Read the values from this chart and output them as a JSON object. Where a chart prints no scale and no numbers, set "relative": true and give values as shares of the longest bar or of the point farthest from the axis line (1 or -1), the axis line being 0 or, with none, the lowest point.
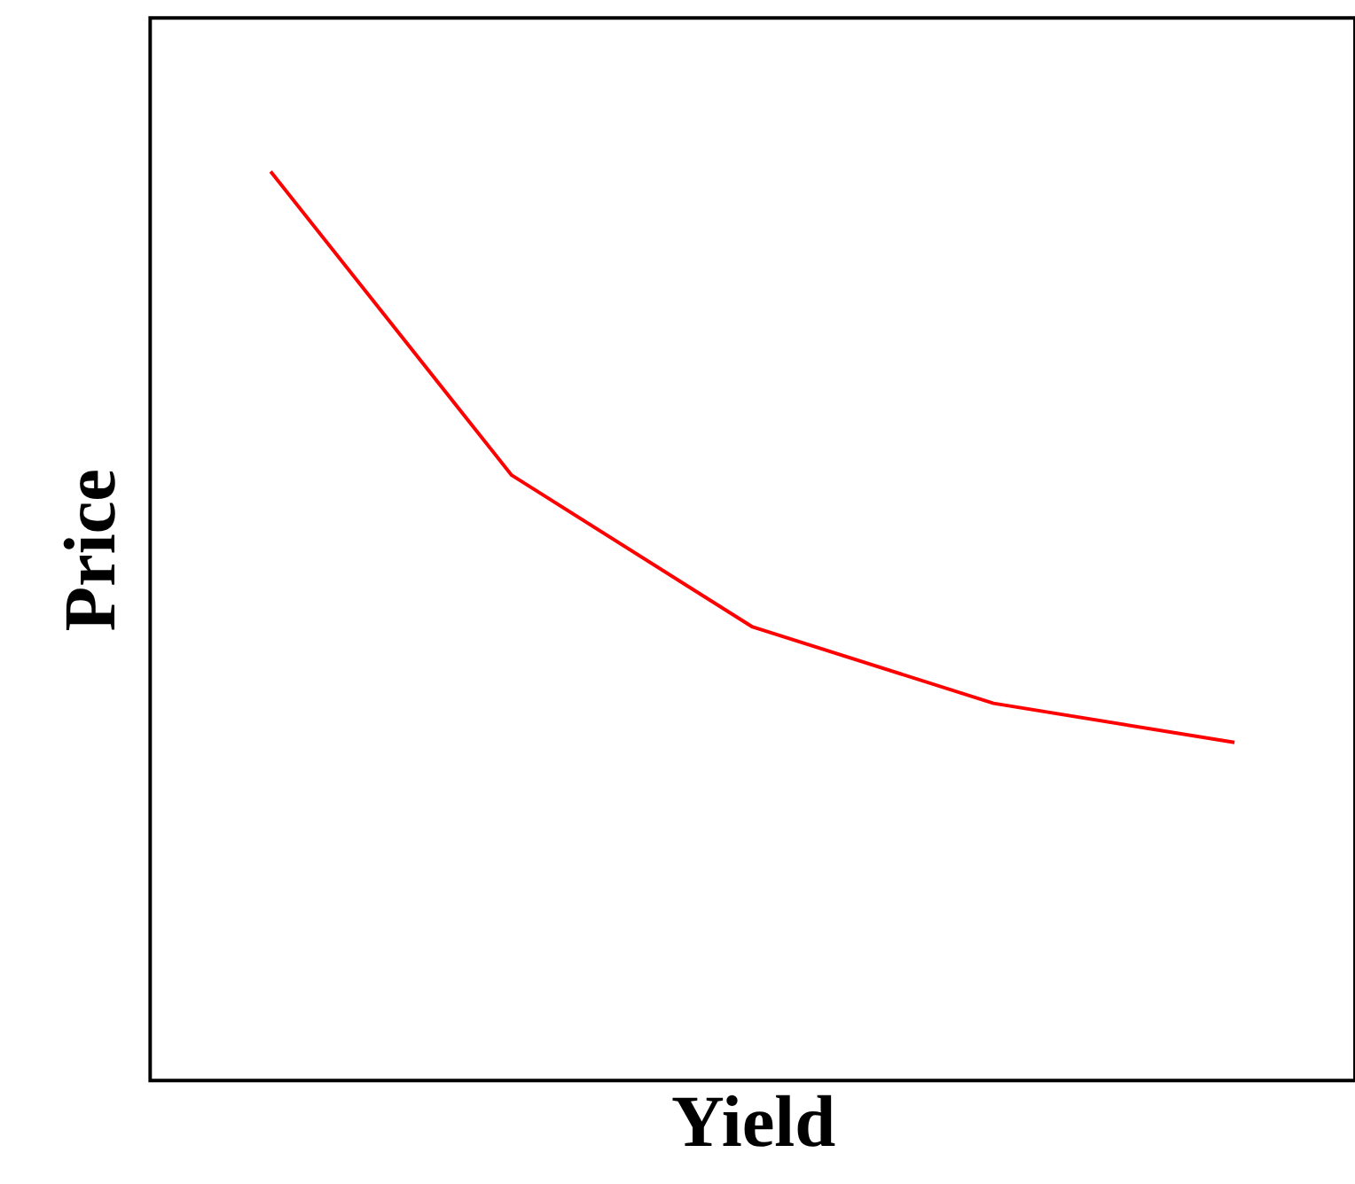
{
  "chart_data": {
    "type": "line",
    "xlabel": "Yield",
    "ylabel": "Price",
    "relative": true,
    "categories": [
      null,
      null,
      null,
      null,
      null
    ],
    "series": [
      {
        "color": "#ff0000",
        "values": [
          1,
          0.666,
          0.499,
          0.415,
          0.372
        ]
      }
    ],
    "grid": false,
    "tick_labels": false
  }
}
